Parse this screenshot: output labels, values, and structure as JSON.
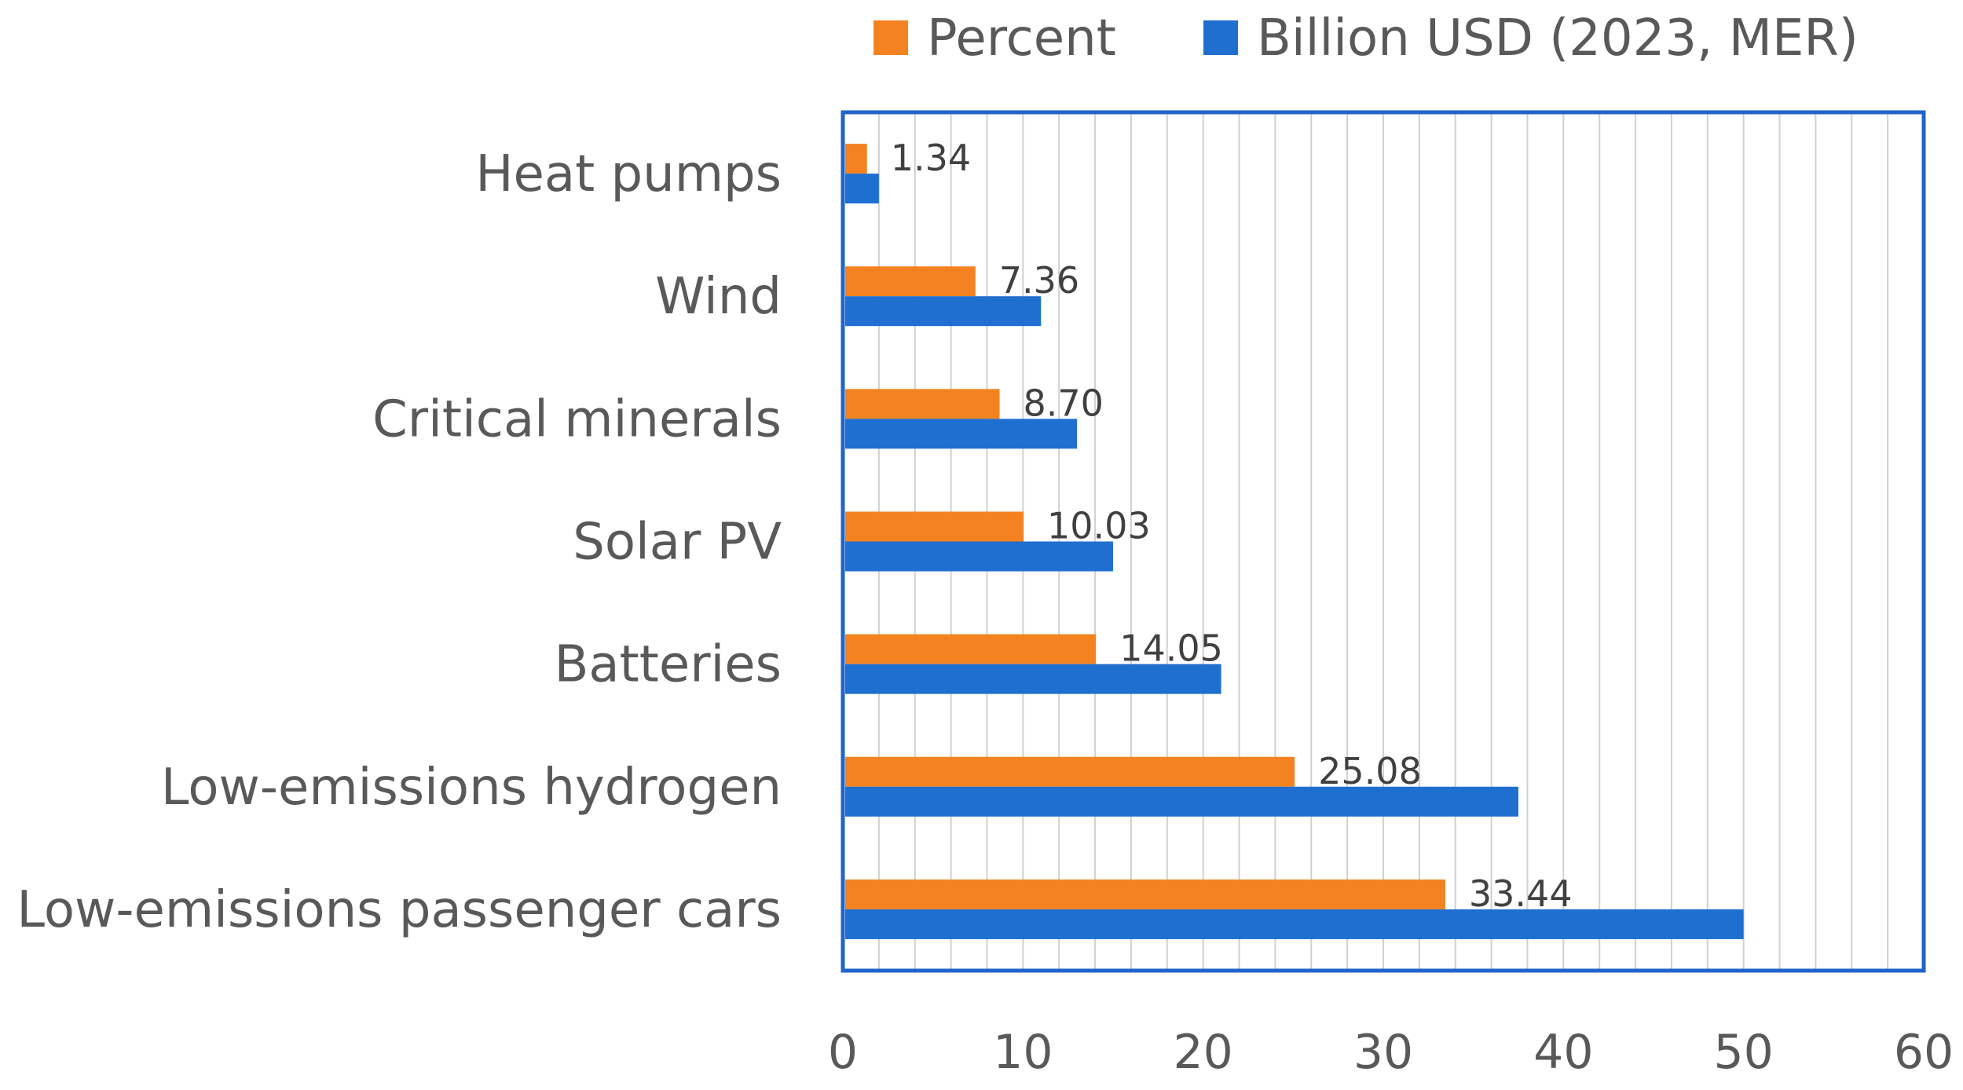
{
  "chart_data": {
    "type": "bar",
    "orientation": "horizontal",
    "categories": [
      "Heat pumps",
      "Wind",
      "Critical minerals",
      "Solar PV",
      "Batteries",
      "Low-emissions hydrogen",
      "Low-emissions passenger cars"
    ],
    "series": [
      {
        "name": "Percent",
        "color": "#f58220",
        "values": [
          1.34,
          7.36,
          8.7,
          10.03,
          14.05,
          25.08,
          33.44
        ],
        "data_labels": [
          "1.34",
          "7.36",
          "8.70",
          "10.03",
          "14.05",
          "25.08",
          "33.44"
        ]
      },
      {
        "name": "Billion USD (2023, MER)",
        "color": "#1f6fd1",
        "values": [
          2,
          11,
          13,
          15,
          21,
          37.5,
          50
        ]
      }
    ],
    "xlim": [
      0,
      60
    ],
    "x_ticks": [
      "0",
      "10",
      "20",
      "30",
      "40",
      "50",
      "60"
    ],
    "grid": true,
    "legend": "top"
  }
}
